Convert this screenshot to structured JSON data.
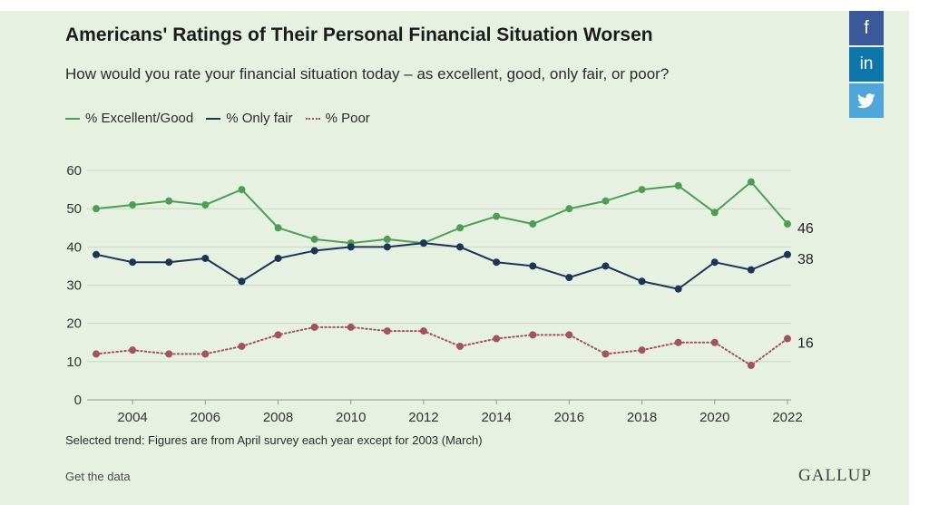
{
  "title": "Americans' Ratings of Their Personal Financial Situation Worsen",
  "subtitle": "How would you rate your financial situation today – as excellent, good, only fair, or poor?",
  "note": "Selected trend: Figures are from April survey each year except for 2003 (March)",
  "get_data_label": "Get the data",
  "brand": "GALLUP",
  "share": {
    "facebook": "f",
    "linkedin": "in",
    "twitter_icon": "twitter-bird-icon"
  },
  "colors": {
    "excellent_good": "#4d9e55",
    "only_fair": "#1c3557",
    "poor": "#a2545e",
    "background": "#e7f1e1",
    "grid": "#c9d6c3"
  },
  "chart_data": {
    "type": "line",
    "x": [
      2003,
      2004,
      2005,
      2006,
      2007,
      2008,
      2009,
      2010,
      2011,
      2012,
      2013,
      2014,
      2015,
      2016,
      2017,
      2018,
      2019,
      2020,
      2021,
      2022
    ],
    "x_ticks": [
      2004,
      2006,
      2008,
      2010,
      2012,
      2014,
      2016,
      2018,
      2020,
      2022
    ],
    "y_ticks": [
      0,
      10,
      20,
      30,
      40,
      50,
      60
    ],
    "ylim": [
      0,
      60
    ],
    "xlim": [
      2003,
      2022
    ],
    "grid": true,
    "legend_position": "top-left",
    "series": [
      {
        "name": "% Excellent/Good",
        "style": "solid",
        "color": "#4d9e55",
        "end_label": "46",
        "values": [
          50,
          51,
          52,
          51,
          55,
          45,
          42,
          41,
          42,
          41,
          45,
          48,
          46,
          50,
          52,
          55,
          56,
          49,
          57,
          46
        ]
      },
      {
        "name": "% Only fair",
        "style": "solid",
        "color": "#1c3557",
        "end_label": "38",
        "values": [
          38,
          36,
          36,
          37,
          31,
          37,
          39,
          40,
          40,
          41,
          40,
          36,
          35,
          32,
          35,
          31,
          29,
          36,
          34,
          38
        ]
      },
      {
        "name": "% Poor",
        "style": "dotted",
        "color": "#a2545e",
        "end_label": "16",
        "values": [
          12,
          13,
          12,
          12,
          14,
          17,
          19,
          19,
          18,
          18,
          14,
          16,
          17,
          17,
          12,
          13,
          15,
          15,
          9,
          16
        ]
      }
    ]
  }
}
